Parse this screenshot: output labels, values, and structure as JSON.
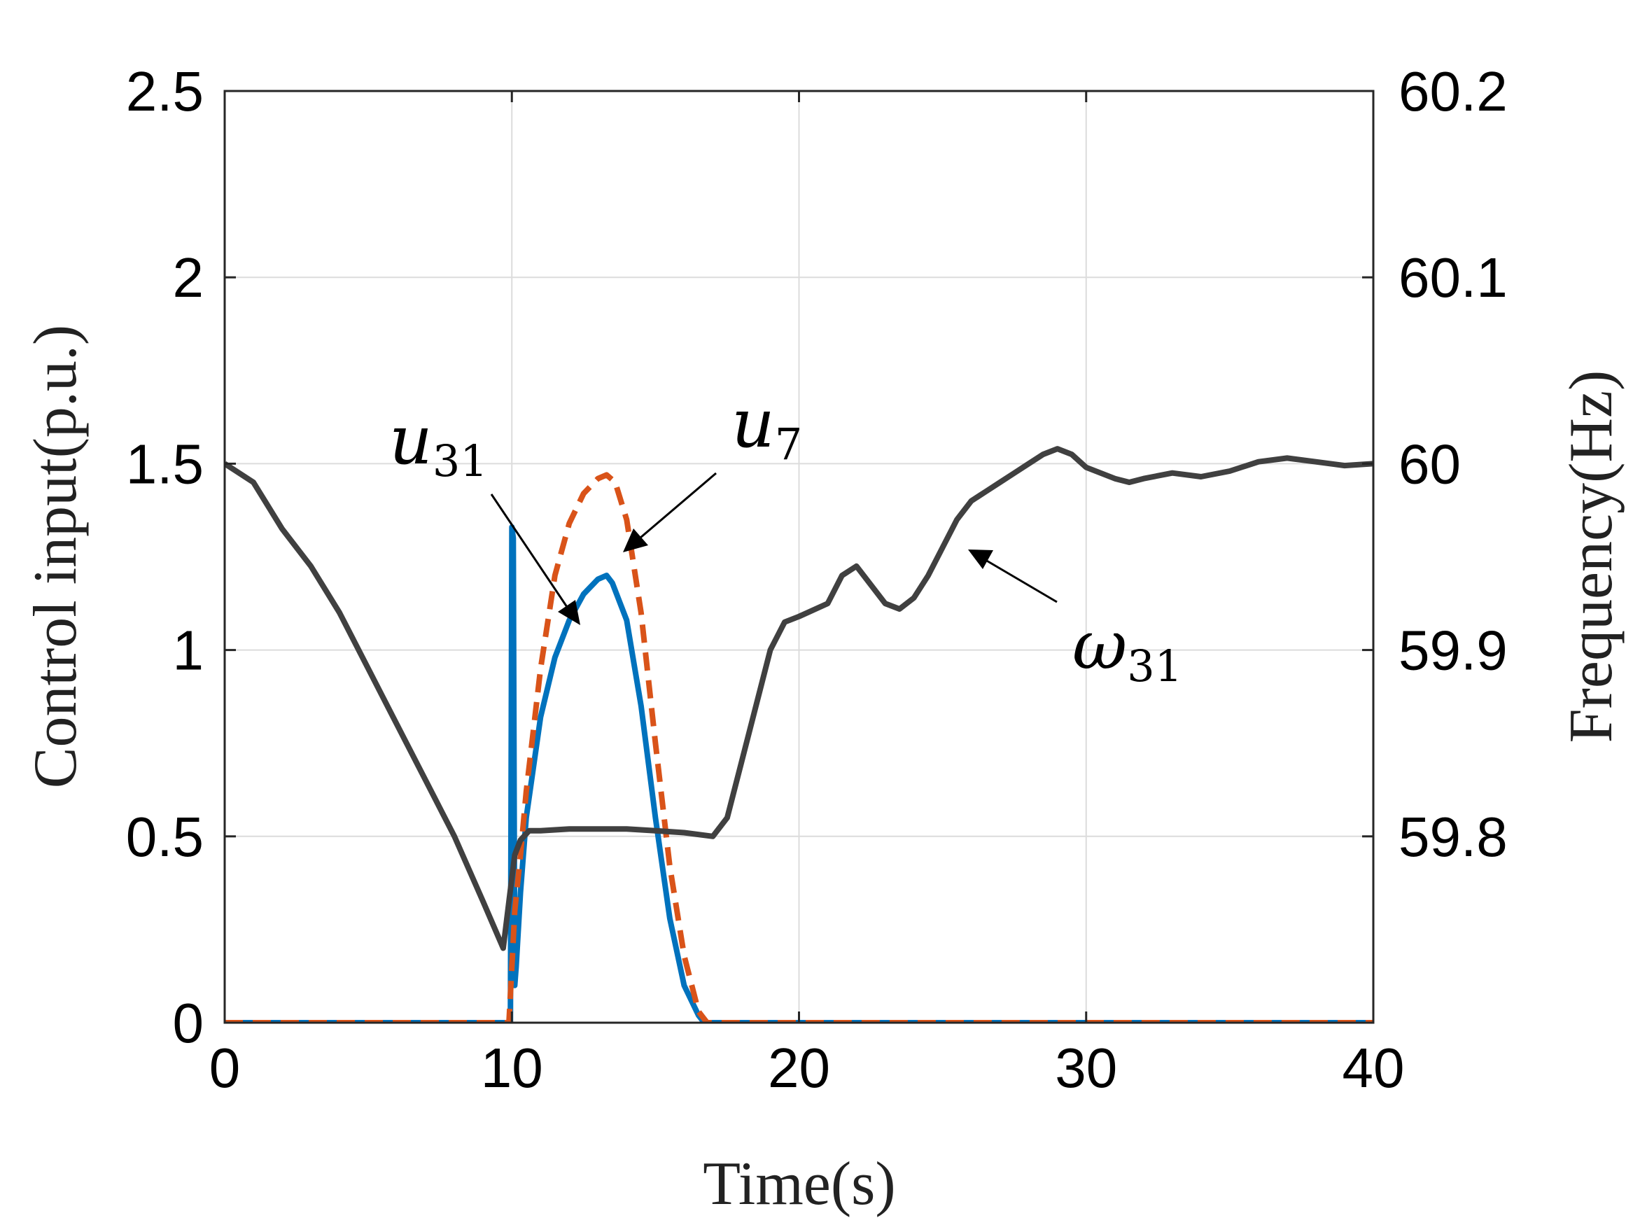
{
  "chart_data": {
    "type": "line",
    "xlabel": "Time(s)",
    "ylabel_left": "Control input(p.u.)",
    "ylabel_right": "Frequency(Hz)",
    "xlim": [
      0,
      40
    ],
    "ylim_left": [
      0,
      2.5
    ],
    "ylim_right": [
      59.7,
      60.2
    ],
    "x_ticks": [
      "0",
      "10",
      "20",
      "30",
      "40"
    ],
    "y_ticks_left": [
      "0",
      "0.5",
      "1",
      "1.5",
      "2",
      "2.5"
    ],
    "y_ticks_right": [
      "59.8",
      "59.9",
      "60",
      "60.1",
      "60.2"
    ],
    "grid": true,
    "series": [
      {
        "name": "u31",
        "axis": "left",
        "style": "solid",
        "color": "#0072BD",
        "x": [
          0,
          9.9,
          9.95,
          10.0,
          10.05,
          10.1,
          10.15,
          10.3,
          10.5,
          11,
          11.5,
          12,
          12.5,
          13,
          13.3,
          13.5,
          14,
          14.5,
          15,
          15.5,
          16,
          16.5,
          16.7,
          17,
          20,
          30,
          40
        ],
        "y": [
          0,
          0,
          0,
          1.33,
          1.3,
          0.1,
          0.15,
          0.35,
          0.55,
          0.82,
          0.98,
          1.08,
          1.15,
          1.19,
          1.2,
          1.18,
          1.08,
          0.85,
          0.55,
          0.28,
          0.1,
          0.02,
          0,
          0,
          0,
          0,
          0
        ]
      },
      {
        "name": "u7",
        "axis": "left",
        "style": "dashed",
        "color": "#D95319",
        "x": [
          0,
          9.9,
          10.0,
          10.1,
          10.3,
          10.5,
          11,
          11.5,
          12,
          12.5,
          13,
          13.3,
          13.6,
          14,
          14.5,
          15,
          15.5,
          16,
          16.5,
          16.8,
          17,
          20,
          30,
          40
        ],
        "y": [
          0,
          0,
          0.15,
          0.3,
          0.45,
          0.62,
          0.95,
          1.2,
          1.34,
          1.42,
          1.46,
          1.47,
          1.45,
          1.35,
          1.1,
          0.75,
          0.42,
          0.18,
          0.03,
          0,
          0,
          0,
          0,
          0
        ]
      },
      {
        "name": "ω31",
        "axis": "right",
        "style": "solid",
        "color": "#404040",
        "x": [
          0,
          1,
          2,
          3,
          4,
          5,
          6,
          7,
          8,
          9,
          9.7,
          9.9,
          10.1,
          10.3,
          10.6,
          11,
          12,
          13,
          14,
          15,
          16,
          17,
          17.5,
          18,
          18.5,
          19,
          19.5,
          20,
          21,
          21.5,
          22,
          22.5,
          23,
          23.5,
          24,
          24.5,
          25,
          25.5,
          26,
          26.5,
          27,
          27.5,
          28,
          28.5,
          29,
          29.5,
          30,
          31,
          31.5,
          32,
          33,
          34,
          35,
          36,
          37,
          38,
          39,
          40
        ],
        "y": [
          60.0,
          59.99,
          59.965,
          59.945,
          59.92,
          59.89,
          59.86,
          59.83,
          59.8,
          59.765,
          59.74,
          59.765,
          59.79,
          59.798,
          59.803,
          59.803,
          59.804,
          59.804,
          59.804,
          59.803,
          59.802,
          59.8,
          59.81,
          59.84,
          59.87,
          59.9,
          59.915,
          59.918,
          59.925,
          59.94,
          59.945,
          59.935,
          59.925,
          59.922,
          59.928,
          59.94,
          59.955,
          59.97,
          59.98,
          59.985,
          59.99,
          59.995,
          60.0,
          60.005,
          60.008,
          60.005,
          59.998,
          59.992,
          59.99,
          59.992,
          59.995,
          59.993,
          59.996,
          60.001,
          60.003,
          60.001,
          59.999,
          60.0
        ]
      }
    ],
    "annotations": [
      {
        "text": "u",
        "sub": "31",
        "target": "u31"
      },
      {
        "text": "u",
        "sub": "7",
        "target": "u7"
      },
      {
        "text": "ω",
        "sub": "31",
        "target": "ω31"
      }
    ]
  }
}
